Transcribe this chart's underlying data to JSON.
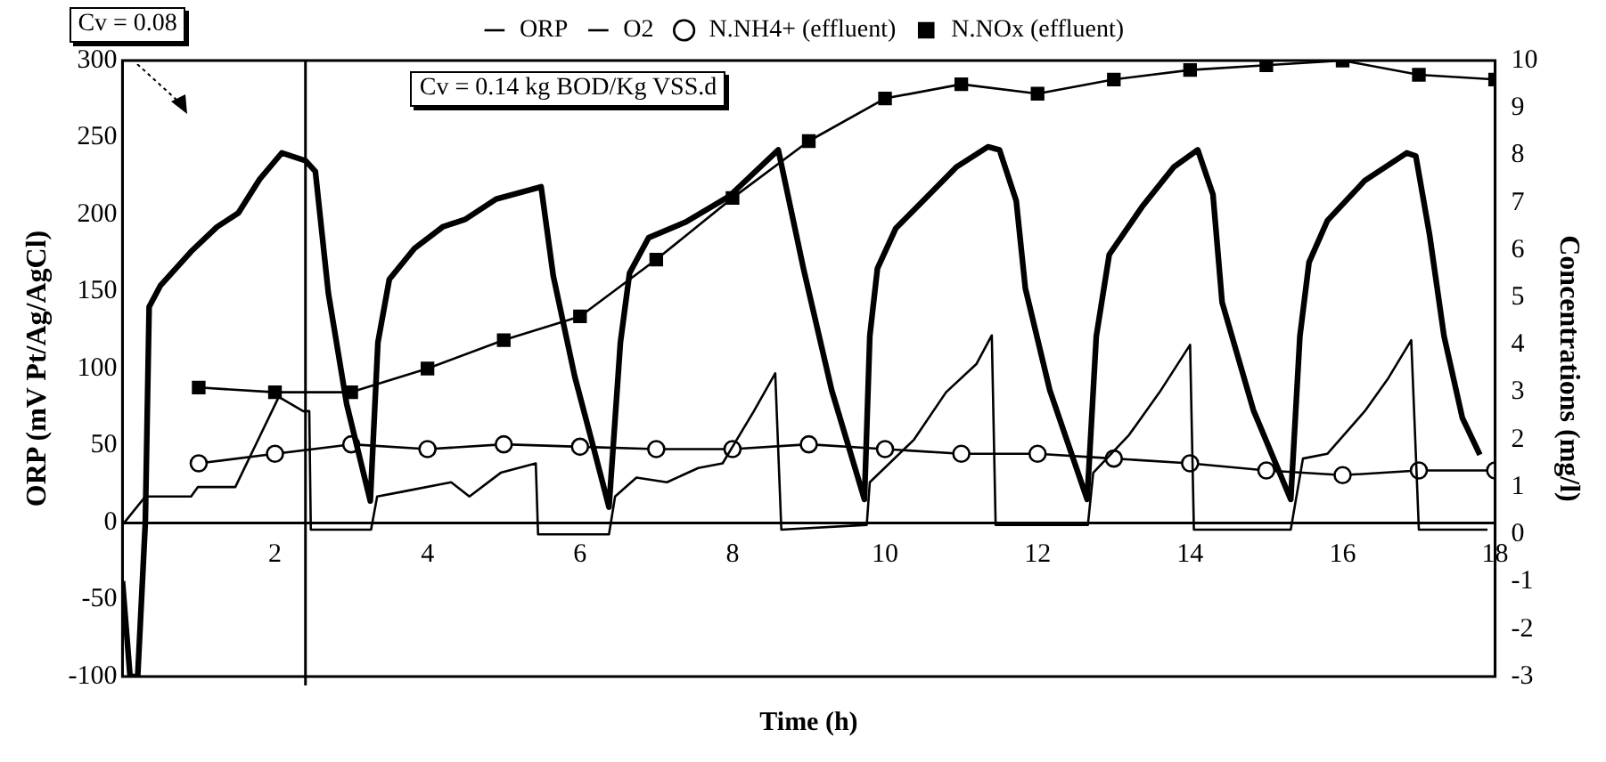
{
  "chart_data": {
    "type": "line",
    "xlabel": "Time (h)",
    "ylabel": "ORP (mV Pt/Ag/AgCl)",
    "y2label": "Concentrations (mg/l)",
    "xlim": [
      0,
      18
    ],
    "xticks": [
      2,
      4,
      6,
      8,
      10,
      12,
      14,
      16,
      18
    ],
    "ylim": [
      -100,
      300
    ],
    "yticks": [
      -100,
      -50,
      0,
      50,
      100,
      150,
      200,
      250,
      300
    ],
    "y2lim": [
      -3,
      10
    ],
    "y2ticks": [
      -3,
      -2,
      -1,
      0,
      1,
      2,
      3,
      4,
      5,
      6,
      7,
      8,
      9,
      10
    ],
    "grid": false,
    "legend": "top",
    "ref_lines": [
      {
        "axis": "x",
        "value": 2.4,
        "color": "#000000"
      }
    ],
    "annotations": [
      "Cv = 0.08",
      "Cv = 0.14 kg BOD/Kg VSS.d"
    ],
    "series": [
      {
        "name": "ORP",
        "color": "#000000",
        "marker": "none",
        "x": [
          0,
          0.1,
          0.2,
          0.3,
          0.35,
          0.5,
          0.9,
          1.24,
          1.52,
          1.8,
          2.09,
          2.4,
          2.53,
          2.7,
          2.94,
          3.25,
          3.35,
          3.5,
          3.83,
          4.2,
          4.5,
          4.9,
          5.49,
          5.65,
          5.93,
          6.17,
          6.38,
          6.53,
          6.65,
          6.9,
          7.38,
          7.96,
          8.6,
          8.93,
          9.3,
          9.73,
          9.8,
          9.9,
          10.14,
          10.5,
          10.94,
          11.35,
          11.5,
          11.72,
          11.84,
          12.16,
          12.65,
          12.77,
          12.94,
          13.37,
          13.79,
          14.1,
          14.3,
          14.42,
          14.83,
          15.32,
          15.44,
          15.56,
          15.8,
          16.29,
          16.84,
          16.96,
          17.14,
          17.33,
          17.57,
          17.8
        ],
        "values": [
          -38,
          -100,
          -100,
          0,
          140,
          154,
          176,
          192,
          201,
          223,
          240,
          235,
          228,
          149,
          77,
          14,
          117,
          158,
          178,
          192,
          197,
          210,
          218,
          160,
          95,
          50,
          10,
          117,
          162,
          185,
          195,
          212,
          242,
          165,
          86,
          15,
          121,
          165,
          191,
          209,
          231,
          244,
          242,
          209,
          152,
          86,
          15,
          121,
          174,
          205,
          231,
          242,
          213,
          143,
          73,
          15,
          121,
          169,
          196,
          222,
          240,
          238,
          187,
          121,
          68,
          44
        ]
      },
      {
        "name": "O2",
        "color": "#000000",
        "marker": "none",
        "axis": "y2",
        "x": [
          0,
          0.3,
          0.9,
          0.99,
          1.48,
          1.72,
          2.05,
          2.37,
          2.45,
          2.47,
          3.26,
          3.34,
          3.67,
          4.31,
          4.55,
          4.96,
          5.42,
          5.45,
          6.38,
          6.46,
          6.74,
          7.14,
          7.55,
          7.87,
          8.28,
          8.56,
          8.64,
          9.76,
          9.8,
          10.38,
          10.8,
          11.2,
          11.4,
          11.45,
          12.66,
          12.73,
          13.2,
          13.6,
          14.0,
          14.05,
          15.32,
          15.48,
          15.8,
          16.29,
          16.6,
          16.9,
          17.0,
          17.9
        ],
        "values": [
          0.2,
          0.8,
          0.8,
          1.0,
          1.0,
          1.8,
          2.9,
          2.6,
          2.6,
          0.1,
          0.1,
          0.8,
          0.9,
          1.1,
          0.8,
          1.3,
          1.5,
          0.0,
          0.0,
          0.8,
          1.2,
          1.1,
          1.4,
          1.5,
          2.6,
          3.4,
          0.1,
          0.2,
          1.1,
          2.0,
          3.0,
          3.6,
          4.2,
          0.2,
          0.2,
          1.3,
          2.1,
          3.0,
          4.0,
          0.1,
          0.1,
          1.6,
          1.7,
          2.6,
          3.3,
          4.1,
          0.1,
          0.1
        ]
      },
      {
        "name": "N.NH4+ (effluent)",
        "color": "#000000",
        "marker": "circle",
        "axis": "y2",
        "x": [
          1,
          2,
          3,
          4,
          5,
          6,
          7,
          8,
          9,
          10,
          11,
          12,
          13,
          14,
          15,
          16,
          17,
          18
        ],
        "values": [
          1.5,
          1.7,
          1.9,
          1.8,
          1.9,
          1.85,
          1.8,
          1.8,
          1.9,
          1.8,
          1.7,
          1.7,
          1.6,
          1.5,
          1.35,
          1.25,
          1.35,
          1.35
        ]
      },
      {
        "name": "N.NOx (effluent)",
        "color": "#000000",
        "marker": "square",
        "axis": "y2",
        "x": [
          1,
          2,
          3,
          4,
          5,
          6,
          7,
          8,
          9,
          10,
          11,
          12,
          13,
          14,
          15,
          16,
          17,
          18
        ],
        "values": [
          3.1,
          3.0,
          3.0,
          3.5,
          4.1,
          4.6,
          5.8,
          7.1,
          8.3,
          9.2,
          9.5,
          9.3,
          9.6,
          9.8,
          9.9,
          10.0,
          9.7,
          9.6
        ]
      }
    ]
  }
}
